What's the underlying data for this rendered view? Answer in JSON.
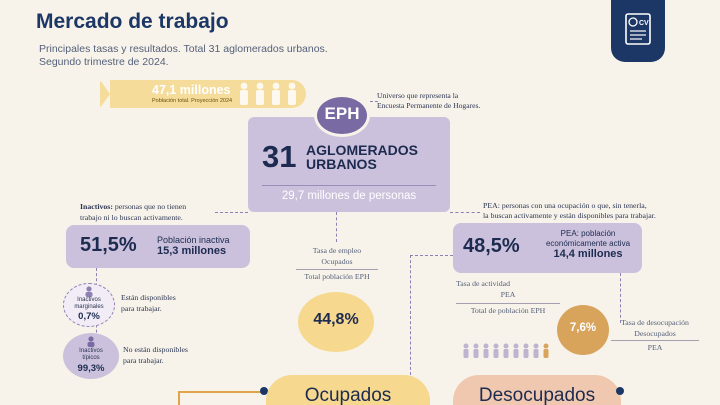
{
  "header": {
    "title": "Mercado de trabajo",
    "subtitle_line1": "Principales tasas y resultados. Total 31 aglomerados urbanos.",
    "subtitle_line2": "Segundo trimestre de 2024."
  },
  "population": {
    "value": "47,1 millones",
    "label": "Población total. Proyección 2024"
  },
  "eph": {
    "acronym": "EPH",
    "note_line1": "Universo que representa la",
    "note_line2": "Encuesta Permanente de Hogares.",
    "number": "31",
    "title_line1": "AGLOMERADOS",
    "title_line2": "URBANOS",
    "people": "29,7 millones de personas"
  },
  "inactivos": {
    "term": "Inactivos:",
    "note_line1": "personas que no tienen",
    "note_line2": "trabajo ni lo buscan activamente.",
    "pct": "51,5%",
    "label": "Población inactiva",
    "value": "15,3 millones",
    "marginales": {
      "label_line1": "Inactivos",
      "label_line2": "marginales",
      "pct": "0,7%",
      "note_line1": "Están disponibles",
      "note_line2": "para trabajar."
    },
    "tipicos": {
      "label_line1": "Inactivos",
      "label_line2": "típicos",
      "pct": "99,3%",
      "note_line1": "No están disponibles",
      "note_line2": "para trabajar."
    }
  },
  "empleo": {
    "title": "Tasa de empleo",
    "numerator": "Ocupados",
    "denominator": "Total población EPH",
    "value": "44,8%"
  },
  "pea": {
    "note_line1": "PEA: personas con una ocupación o que, sin tenerla,",
    "note_line2": "la buscan activamente y están disponibles para trabajar.",
    "pct": "48,5%",
    "label_line1": "PEA: población",
    "label_line2": "económicamente activa",
    "value": "14,4 millones"
  },
  "actividad": {
    "title": "Tasa de actividad",
    "numerator": "PEA",
    "denominator": "Total de población EPH"
  },
  "desocupacion": {
    "value": "7,6%",
    "title": "Tasa de desocupación",
    "numerator": "Desocupados",
    "denominator": "PEA"
  },
  "bottom": {
    "ocupados": "Ocupados",
    "desocupados": "Desocupados"
  },
  "colors": {
    "navy": "#1c3766",
    "lavender": "#cbc1dc",
    "purple": "#7a6aa3",
    "yellow": "#f6d88e",
    "amber": "#d8a45c"
  },
  "icons": [
    "cv-document-icon",
    "person-icon"
  ]
}
